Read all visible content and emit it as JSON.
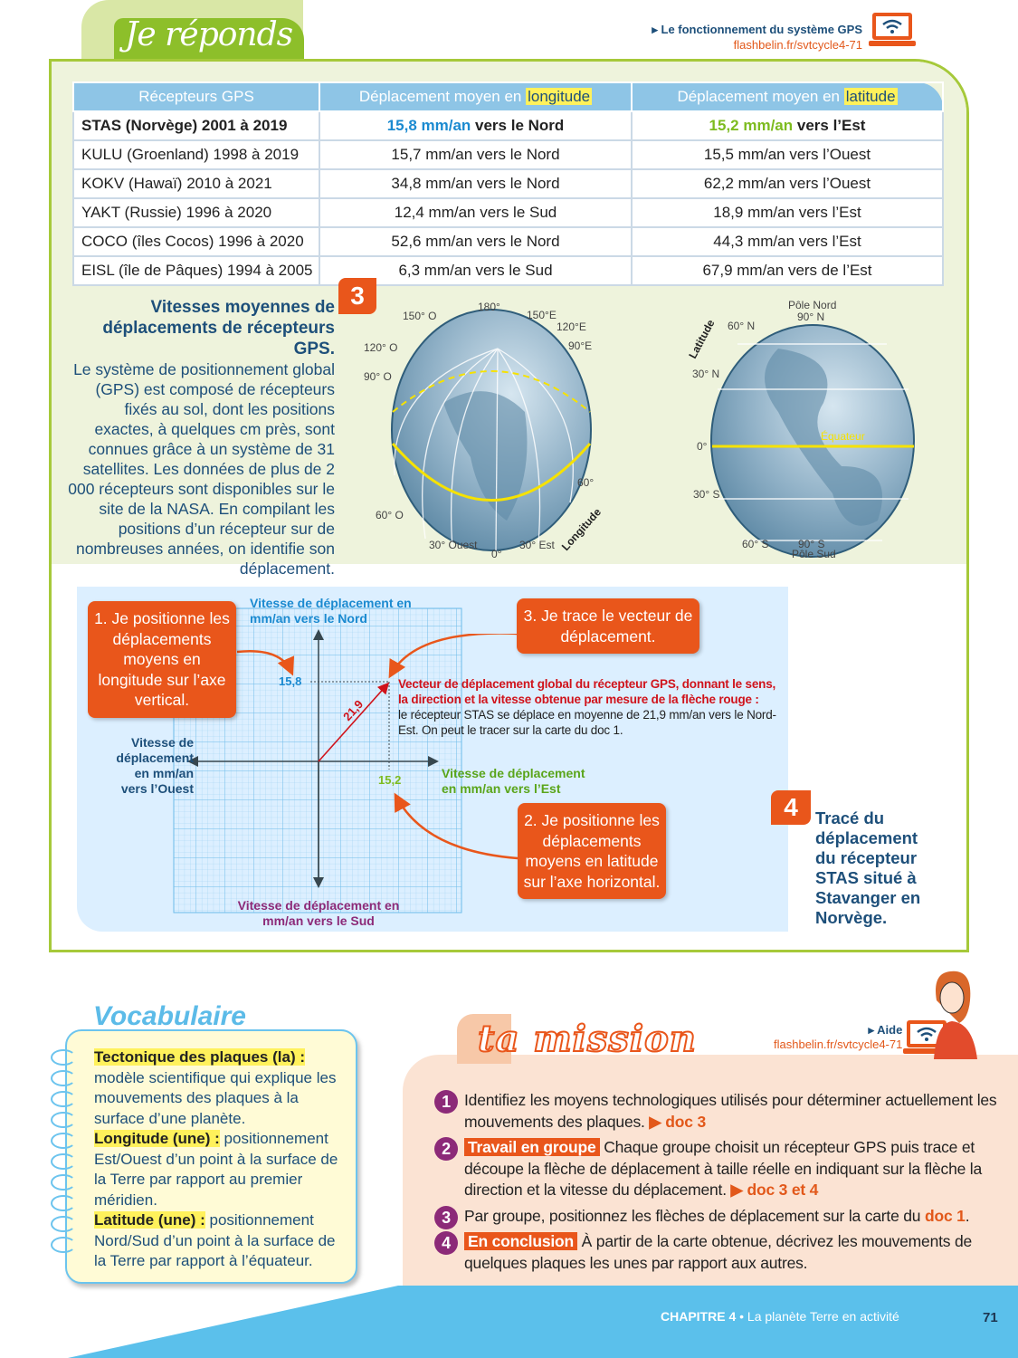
{
  "header": {
    "title": "Je réponds",
    "link_label": "Le fonctionnement du système GPS",
    "link_url": "flashbelin.fr/svtcycle4-71"
  },
  "table": {
    "headers": [
      "Récepteurs GPS",
      "Déplacement moyen en ",
      "longitude",
      "Déplacement moyen en ",
      "latitude"
    ],
    "highlight_row": {
      "receiver": "STAS (Norvège) 2001 à 2019",
      "long_value": "15,8 mm/an",
      "long_dir": " vers le Nord",
      "lat_value": "15,2 mm/an",
      "lat_dir": " vers l’Est"
    },
    "rows": [
      {
        "receiver": "KULU (Groenland) 1998 à 2019",
        "longitude": "15,7 mm/an vers le Nord",
        "latitude": "15,5 mm/an  vers l’Ouest"
      },
      {
        "receiver": "KOKV (Hawaï) 2010 à 2021",
        "longitude": "34,8 mm/an vers le Nord",
        "latitude": "62,2 mm/an vers l’Ouest"
      },
      {
        "receiver": "YAKT (Russie) 1996 à 2020",
        "longitude": "12,4 mm/an vers le Sud",
        "latitude": "18,9 mm/an vers l’Est"
      },
      {
        "receiver": "COCO (îles Cocos) 1996 à 2020",
        "longitude": "52,6 mm/an vers le Nord",
        "latitude": "44,3 mm/an vers l’Est"
      },
      {
        "receiver": "EISL (île de Pâques) 1994 à 2005",
        "longitude": "6,3 mm/an vers le Sud",
        "latitude": "67,9 mm/an vers de l’Est"
      }
    ]
  },
  "doc3": {
    "number": "3",
    "title": "Vitesses moyennes de déplacements de récepteurs GPS.",
    "body": "Le système de positionnement global (GPS) est composé de récepteurs fixés au sol, dont les positions exactes, à quelques cm près, sont connues grâce à un système de 31 satellites. Les données de plus de 2 000 récepteurs sont disponibles sur le site de la NASA. En compilant les positions d’un récepteur sur de nombreuses années, on identifie son déplacement."
  },
  "globe_longitude": {
    "labels": [
      "180°",
      "150° O",
      "150°E",
      "120° O",
      "120°E",
      "90° O",
      "90°E",
      "60° O",
      "60°",
      "30° Ouest",
      "0°",
      "30° Est"
    ],
    "arrow_label": "Longitude"
  },
  "globe_latitude": {
    "pole_north": "Pôle Nord",
    "north_90": "90° N",
    "labels": [
      "60° N",
      "30° N",
      "0°",
      "30° S",
      "60° S"
    ],
    "south_90": "90° S",
    "pole_south": "Pôle Sud",
    "equator": "Équateur",
    "arrow_label": "Latitude"
  },
  "doc4": {
    "number": "4",
    "title": "Tracé du déplacement du récepteur STAS situé à Stavanger en Norvège.",
    "step1": "1. Je positionne les déplacements moyens en longitude sur l’axe vertical.",
    "step2": "2. Je positionne les déplacements moyens en latitude sur l’axe horizontal.",
    "step3": "3. Je trace le vecteur de déplacement.",
    "axis_north": "Vitesse de déplacement en mm/an vers le Nord",
    "axis_south": "Vitesse de déplacement en mm/an vers le Sud",
    "axis_east": "Vitesse de déplacement en mm/an vers l’Est",
    "axis_west": "Vitesse de déplacement en mm/an vers l’Ouest",
    "north_value": "15,8",
    "east_value": "15,2",
    "vector_value": "21,9",
    "vector_title": "Vecteur de déplacement global du récepteur GPS, donnant le sens, la direction et la vitesse obtenue par mesure de la flèche rouge :",
    "vector_text": "le récepteur STAS se déplace en moyenne de 21,9 mm/an vers le Nord-Est. On peut le tracer sur la carte du doc 1."
  },
  "vocabulary": {
    "heading": "Vocabulaire",
    "entries": [
      {
        "term": "Tectonique des plaques (la) :",
        "definition": " modèle scientifique qui explique les mouvements des plaques à la surface d’une planète."
      },
      {
        "term": "Longitude (une) :",
        "definition": " positionnement Est/Ouest d’un point à la surface de la Terre par rapport au premier méridien."
      },
      {
        "term": "Latitude (une) :",
        "definition": " positionnement Nord/Sud d’un point à la surface de la Terre par rapport à l’équateur."
      }
    ]
  },
  "mission": {
    "title": "ta mission",
    "aide_label": "Aide",
    "aide_url": "flashbelin.fr/svtcycle4-71",
    "tasks": [
      {
        "num": "1",
        "tag": "",
        "text": "Identifiez les moyens technologiques utilisés pour déterminer actuellement les mouvements des plaques.",
        "ref": "doc 3"
      },
      {
        "num": "2",
        "tag": "Travail en groupe",
        "text": "Chaque groupe choisit un récepteur GPS puis trace et découpe la flèche de déplacement à taille réelle en indiquant sur la flèche la direction et la vitesse du déplacement.",
        "ref": "doc 3 et 4"
      },
      {
        "num": "3",
        "tag": "",
        "text": "Par groupe, positionnez les flèches de déplacement sur la carte du ",
        "ref": "doc 1"
      },
      {
        "num": "4",
        "tag": "En conclusion",
        "text": "À partir de la carte obtenue, décrivez les mouvements de quelques plaques les unes par rapport aux autres.",
        "ref": ""
      }
    ]
  },
  "footer": {
    "chapter": "CHAPITRE 4",
    "separator": " • ",
    "chapter_title": "La planète Terre en activité",
    "page": "71"
  },
  "colors": {
    "accent_orange": "#e9561b",
    "frame_green": "#a6c93a",
    "table_header_blue": "#8ec5e6",
    "mission_purple": "#8c2a78",
    "footer_blue": "#5bc0eb"
  }
}
